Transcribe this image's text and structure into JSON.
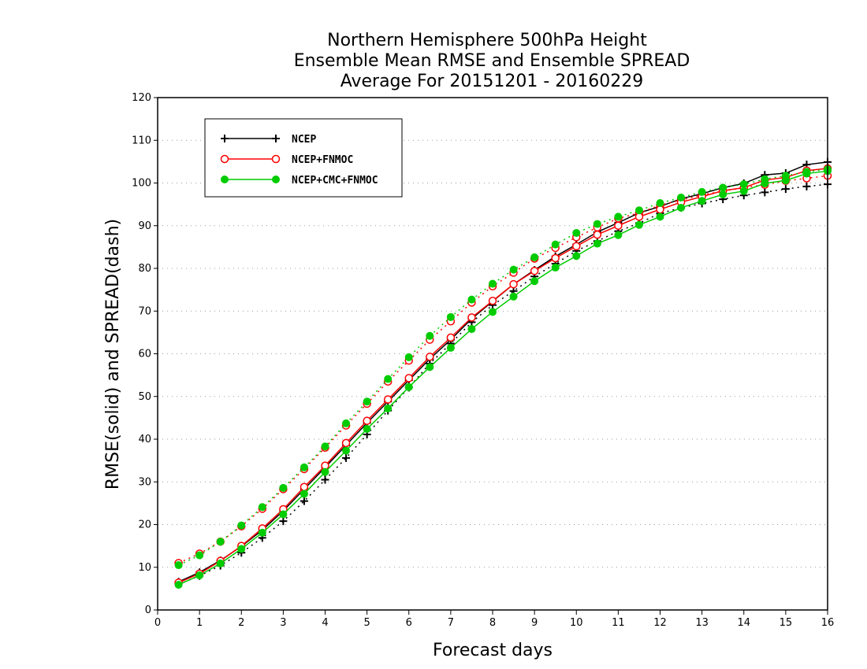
{
  "chart_data": {
    "type": "line",
    "title": [
      "Northern Hemisphere 500hPa Height",
      "Ensemble Mean RMSE and Ensemble SPREAD",
      "Average For 20151201 - 20160229"
    ],
    "xlabel": "Forecast days",
    "ylabel": "RMSE(solid) and SPREAD(dash)",
    "xlim": [
      0,
      16
    ],
    "ylim": [
      0,
      120
    ],
    "xticks": [
      0,
      1,
      2,
      3,
      4,
      5,
      6,
      7,
      8,
      9,
      10,
      11,
      12,
      13,
      14,
      15,
      16
    ],
    "yticks": [
      0,
      10,
      20,
      30,
      40,
      50,
      60,
      70,
      80,
      90,
      100,
      110,
      120
    ],
    "grid": "horizontal-dotted",
    "legend_position": "top-left",
    "x": [
      0.5,
      1,
      1.5,
      2,
      2.5,
      3,
      3.5,
      4,
      4.5,
      5,
      5.5,
      6,
      6.5,
      7,
      7.5,
      8,
      8.5,
      9,
      9.5,
      10,
      10.5,
      11,
      11.5,
      12,
      12.5,
      13,
      13.5,
      14,
      14.5,
      15,
      15.5,
      16
    ],
    "series": [
      {
        "name": "NCEP",
        "color": "#000000",
        "marker": "plus",
        "rmse": [
          6.6,
          8.8,
          11.6,
          14.9,
          18.7,
          23.2,
          28.3,
          33.4,
          38.6,
          43.8,
          48.8,
          53.8,
          58.8,
          63.3,
          68.2,
          72.3,
          76.3,
          79.6,
          82.8,
          85.6,
          88.5,
          90.7,
          93.0,
          94.5,
          96.3,
          97.5,
          98.9,
          99.9,
          101.9,
          102.3,
          104.3,
          104.9
        ],
        "spread": [
          6.0,
          8.0,
          10.4,
          13.4,
          16.9,
          20.8,
          25.5,
          30.5,
          35.6,
          41.1,
          46.7,
          52.1,
          57.7,
          62.4,
          67.4,
          71.4,
          74.7,
          78.1,
          81.1,
          84.1,
          86.4,
          88.7,
          90.6,
          92.9,
          94.2,
          95.2,
          96.2,
          97.1,
          97.8,
          98.6,
          99.2,
          99.7
        ]
      },
      {
        "name": "NCEP+FNMOC",
        "color": "#ff0000",
        "marker": "open-circle",
        "rmse": [
          6.4,
          8.5,
          11.5,
          15.0,
          19.1,
          23.6,
          28.8,
          33.8,
          39.1,
          44.3,
          49.3,
          54.3,
          59.3,
          63.8,
          68.5,
          72.4,
          76.3,
          79.4,
          82.4,
          85.2,
          87.9,
          90.0,
          92.1,
          93.8,
          95.5,
          96.8,
          98.2,
          98.9,
          100.7,
          101.3,
          102.9,
          103.4
        ],
        "spread": [
          11.0,
          13.2,
          16.0,
          19.6,
          23.7,
          28.3,
          33.0,
          38.0,
          43.2,
          48.3,
          53.5,
          58.4,
          63.3,
          67.6,
          72.0,
          75.8,
          79.0,
          82.3,
          84.8,
          87.3,
          89.6,
          91.7,
          93.0,
          94.8,
          96.0,
          97.2,
          98.1,
          98.9,
          99.6,
          100.5,
          101.1,
          101.7
        ]
      },
      {
        "name": "NCEP+CMC+FNMOC",
        "color": "#00cc00",
        "marker": "filled-circle",
        "rmse": [
          5.9,
          8.1,
          10.9,
          14.3,
          18.1,
          22.4,
          27.2,
          32.3,
          37.3,
          42.4,
          47.2,
          52.2,
          56.9,
          61.4,
          65.8,
          69.8,
          73.4,
          77.0,
          80.2,
          82.9,
          85.8,
          87.8,
          90.2,
          92.1,
          94.2,
          95.8,
          97.3,
          98.1,
          99.9,
          100.6,
          102.2,
          102.8
        ],
        "spread": [
          10.5,
          12.8,
          16.0,
          19.8,
          24.1,
          28.6,
          33.4,
          38.3,
          43.7,
          48.8,
          54.1,
          59.2,
          64.2,
          68.6,
          72.7,
          76.4,
          79.7,
          82.6,
          85.6,
          88.3,
          90.4,
          92.1,
          93.6,
          95.3,
          96.6,
          97.9,
          98.9,
          99.7,
          100.9,
          101.7,
          102.6,
          103.2
        ]
      }
    ]
  }
}
